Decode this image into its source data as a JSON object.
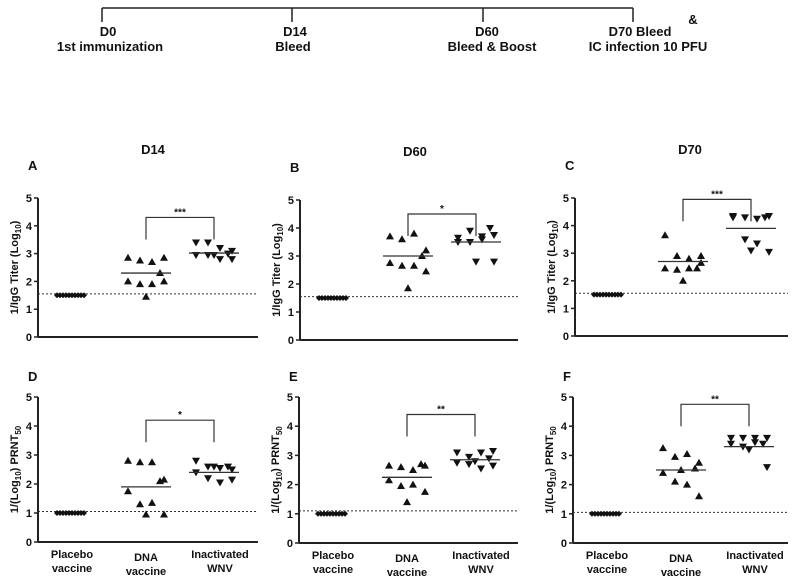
{
  "timeline": {
    "events": [
      {
        "day": "D0",
        "label": "1st immunization"
      },
      {
        "day": "D14",
        "label": "Bleed"
      },
      {
        "day": "D60",
        "label": "Bleed & Boost"
      },
      {
        "day": "D70 Bleed",
        "amp": "&",
        "label": "IC infection 10 PFU"
      }
    ]
  },
  "chart_data": [
    {
      "type": "scatter",
      "panel": "A",
      "title": "D14",
      "ylabel": {
        "pre": "1/IgG Titer (Log",
        "sub": "10",
        "post": ")"
      },
      "ylim": [
        0,
        5
      ],
      "yticks": [
        "0",
        "1",
        "2",
        "3",
        "4",
        "5"
      ],
      "threshold": 1.55,
      "categories": [
        "Placebo vaccine",
        "DNA vaccine",
        "Inactivated WNV"
      ],
      "series": [
        {
          "name": "Placebo vaccine",
          "marker": "diamond",
          "values": [
            1.5,
            1.5,
            1.5,
            1.5,
            1.5,
            1.5,
            1.5,
            1.5,
            1.5,
            1.5
          ],
          "mean": 1.5
        },
        {
          "name": "DNA vaccine",
          "marker": "triangle-up",
          "values": [
            2.85,
            2.75,
            2.7,
            2.85,
            2.3,
            2.0,
            1.9,
            1.9,
            2.0,
            1.45
          ],
          "mean": 2.3
        },
        {
          "name": "Inactivated WNV",
          "marker": "triangle-down",
          "values": [
            3.4,
            3.4,
            3.2,
            3.1,
            3.0,
            2.95,
            2.95,
            2.8,
            2.8,
            2.95
          ],
          "mean": 3.02
        }
      ],
      "significance": {
        "label": "***",
        "y": 4.3
      }
    },
    {
      "type": "scatter",
      "panel": "B",
      "title": "D60",
      "ylabel": {
        "pre": "1/IgG Titer (Log",
        "sub": "10",
        "post": ")"
      },
      "ylim": [
        0,
        5
      ],
      "yticks": [
        "0",
        "1",
        "2",
        "3",
        "4",
        "5"
      ],
      "threshold": 1.55,
      "categories": [
        "Placebo vaccine",
        "DNA vaccine",
        "Inactivated WNV"
      ],
      "series": [
        {
          "name": "Placebo vaccine",
          "marker": "diamond",
          "values": [
            1.5,
            1.5,
            1.5,
            1.5,
            1.5,
            1.5,
            1.5,
            1.5,
            1.5,
            1.5
          ],
          "mean": 1.5
        },
        {
          "name": "DNA vaccine",
          "marker": "triangle-up",
          "values": [
            3.7,
            3.6,
            3.8,
            3.2,
            3.0,
            2.75,
            2.65,
            2.65,
            2.45,
            1.85
          ],
          "mean": 3.0
        },
        {
          "name": "Inactivated WNV",
          "marker": "triangle-down",
          "values": [
            3.65,
            3.9,
            3.7,
            3.75,
            4.0,
            3.5,
            3.5,
            3.6,
            2.8,
            2.8
          ],
          "mean": 3.5
        }
      ],
      "significance": {
        "label": "*",
        "y": 4.5
      }
    },
    {
      "type": "scatter",
      "panel": "C",
      "title": "D70",
      "ylabel": {
        "pre": "1/IgG Titer (Log",
        "sub": "10",
        "post": ")"
      },
      "ylim": [
        0,
        5
      ],
      "yticks": [
        "0",
        "1",
        "2",
        "3",
        "4",
        "5"
      ],
      "threshold": 1.55,
      "categories": [
        "Placebo vaccine",
        "DNA vaccine",
        "Inactivated WNV"
      ],
      "series": [
        {
          "name": "Placebo vaccine",
          "marker": "diamond",
          "values": [
            1.5,
            1.5,
            1.5,
            1.5,
            1.5,
            1.5,
            1.5,
            1.5,
            1.5,
            1.5
          ],
          "mean": 1.5
        },
        {
          "name": "DNA vaccine",
          "marker": "triangle-up",
          "values": [
            3.65,
            2.9,
            2.8,
            2.9,
            2.45,
            2.45,
            2.4,
            2.45,
            2.65,
            2.0
          ],
          "mean": 2.7
        },
        {
          "name": "Inactivated WNV",
          "marker": "triangle-down",
          "values": [
            4.35,
            4.3,
            4.25,
            4.35,
            4.3,
            4.3,
            3.5,
            3.35,
            3.05,
            3.1
          ],
          "mean": 3.9
        }
      ],
      "significance": {
        "label": "***",
        "y": 4.95
      }
    },
    {
      "type": "scatter",
      "panel": "D",
      "title": "",
      "ylabel": {
        "pre": "1/(Log",
        "sub": "10",
        "post": ") PRNT",
        "sub2": "50"
      },
      "ylim": [
        0,
        5
      ],
      "yticks": [
        "0",
        "1",
        "2",
        "3",
        "4",
        "5"
      ],
      "threshold": 1.05,
      "categories": [
        "Placebo vaccine",
        "DNA vaccine",
        "Inactivated WNV"
      ],
      "xlabels": [
        [
          "Placebo",
          "vaccine"
        ],
        [
          "DNA",
          "vaccine"
        ],
        [
          "Inactivated",
          "WNV"
        ]
      ],
      "series": [
        {
          "name": "Placebo vaccine",
          "marker": "diamond",
          "values": [
            1,
            1,
            1,
            1,
            1,
            1,
            1,
            1,
            1,
            1
          ],
          "mean": 1.0
        },
        {
          "name": "DNA vaccine",
          "marker": "triangle-up",
          "values": [
            2.8,
            2.75,
            2.75,
            2.15,
            2.1,
            1.75,
            1.3,
            1.35,
            0.95,
            0.95
          ],
          "mean": 1.9
        },
        {
          "name": "Inactivated WNV",
          "marker": "triangle-down",
          "values": [
            2.8,
            2.6,
            2.55,
            2.5,
            2.6,
            2.4,
            2.2,
            2.05,
            2.15,
            2.6
          ],
          "mean": 2.4
        }
      ],
      "significance": {
        "label": "*",
        "y": 4.2
      }
    },
    {
      "type": "scatter",
      "panel": "E",
      "title": "",
      "ylabel": {
        "pre": "1/(Log",
        "sub": "10",
        "post": ") PRNT",
        "sub2": "50"
      },
      "ylim": [
        0,
        5
      ],
      "yticks": [
        "0",
        "1",
        "2",
        "3",
        "4",
        "5"
      ],
      "threshold": 1.1,
      "categories": [
        "Placebo vaccine",
        "DNA vaccine",
        "Inactivated WNV"
      ],
      "xlabels": [
        [
          "Placebo",
          "vaccine"
        ],
        [
          "DNA",
          "vaccine"
        ],
        [
          "Inactivated",
          "WNV"
        ]
      ],
      "series": [
        {
          "name": "Placebo vaccine",
          "marker": "diamond",
          "values": [
            1,
            1,
            1,
            1,
            1,
            1,
            1,
            1,
            1,
            1
          ],
          "mean": 1.0
        },
        {
          "name": "DNA vaccine",
          "marker": "triangle-up",
          "values": [
            2.65,
            2.6,
            2.5,
            2.65,
            2.7,
            2.15,
            1.95,
            2.0,
            1.75,
            1.4
          ],
          "mean": 2.25
        },
        {
          "name": "Inactivated WNV",
          "marker": "triangle-down",
          "values": [
            3.1,
            2.95,
            3.1,
            3.15,
            2.9,
            2.75,
            2.7,
            2.55,
            2.65,
            2.8
          ],
          "mean": 2.85
        }
      ],
      "significance": {
        "label": "**",
        "y": 4.4
      }
    },
    {
      "type": "scatter",
      "panel": "F",
      "title": "",
      "ylabel": {
        "pre": "1/(Log",
        "sub": "10",
        "post": ") PRNT",
        "sub2": "50"
      },
      "ylim": [
        0,
        5
      ],
      "yticks": [
        "0",
        "1",
        "2",
        "3",
        "4",
        "5"
      ],
      "threshold": 1.05,
      "categories": [
        "Placebo vaccine",
        "DNA vaccine",
        "Inactivated WNV"
      ],
      "xlabels": [
        [
          "Placebo",
          "vaccine"
        ],
        [
          "DNA",
          "vaccine"
        ],
        [
          "Inactivated",
          "WNV"
        ]
      ],
      "series": [
        {
          "name": "Placebo vaccine",
          "marker": "diamond",
          "values": [
            1,
            1,
            1,
            1,
            1,
            1,
            1,
            1,
            1,
            1
          ],
          "mean": 1.0
        },
        {
          "name": "DNA vaccine",
          "marker": "triangle-up",
          "values": [
            3.25,
            2.95,
            3.05,
            2.75,
            2.55,
            2.4,
            2.1,
            2.0,
            1.6,
            2.5
          ],
          "mean": 2.5
        },
        {
          "name": "Inactivated WNV",
          "marker": "triangle-down",
          "values": [
            3.6,
            3.6,
            3.6,
            3.6,
            3.4,
            3.4,
            3.3,
            3.45,
            2.6,
            3.2
          ],
          "mean": 3.3
        }
      ],
      "significance": {
        "label": "**",
        "y": 4.75
      }
    }
  ]
}
